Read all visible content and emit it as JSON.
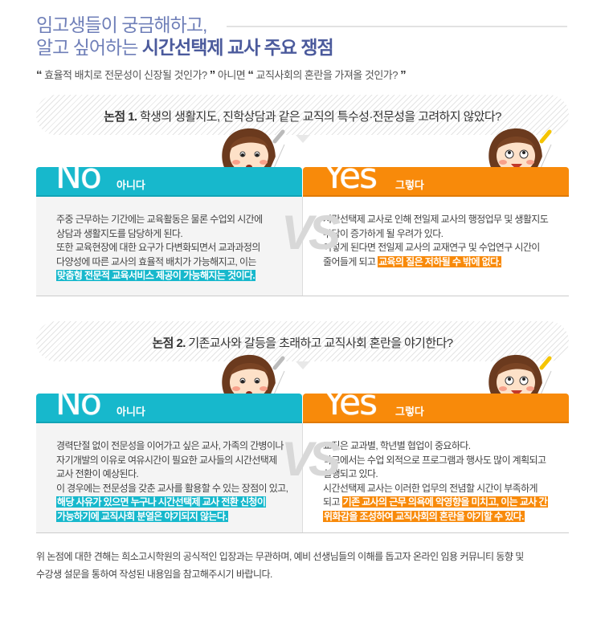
{
  "title": {
    "line1": "임고생들이 궁금해하고,",
    "line2_light": "알고 싶어하는 ",
    "line2_bold": "시간선택제 교사 주요 쟁점"
  },
  "subtitle": {
    "open_quote": "“",
    "q1": " 효율적 배치로 전문성이 신장될 것인가? ",
    "close_quote": "”",
    "mid": "  아니면 ",
    "q2": " 교직사회의 혼란을 가져올 것인가? "
  },
  "issues": [
    {
      "num": "논점 1.",
      "title": " 학생의 생활지도, 진학상담과 같은 교직의 특수성·전문성을 고려하지 않았다?",
      "no": {
        "big": "No",
        "label": "아니다",
        "text": [
          "주중 근무하는 기간에는 교육활동은 물론 수업외 시간에",
          "상담과 생활지도를 담당하게 된다.",
          "또한 교육현장에 대한 요구가 다변화되면서 교과과정의",
          "다양성에 따른 교사의 효율적 배치가 가능해지고, 이는"
        ],
        "highlight": [
          "맞춤형 전문적 교육서비스 제공이 가능해지는 것이다."
        ]
      },
      "yes": {
        "big": "Yes",
        "label": "그렇다",
        "text": [
          "시간선택제 교사로 인해 전일제 교사의 행정업무 및 생활지도",
          "부담이 증가하게 될 우려가 있다.",
          "이렇게 된다면 전일제 교사의 교재연구 및 수업연구 시간이"
        ],
        "lead": "줄어들게 되고 ",
        "highlight": [
          "교육의 질은 저하될 수 밖에 없다."
        ]
      }
    },
    {
      "num": "논점 2.",
      "title": " 기존교사와 갈등을 초래하고 교직사회 혼란을 야기한다?",
      "no": {
        "big": "No",
        "label": "아니다",
        "text": [
          "경력단절 없이 전문성을 이어가고 싶은 교사, 가족의 간병이나",
          "자기개발의 이유로 여유시간이 필요한 교사들의 시간선택제",
          "교사 전환이 예상된다.",
          "이 경우에는 전문성을 갖춘 교사를 활용할 수 있는 장점이 있고,"
        ],
        "highlight": [
          "해당 사유가 있으면 누구나 시간선택제 교사 전환 신청이",
          "가능하기에 교직사회 분열은 야기되지 않는다."
        ]
      },
      "yes": {
        "big": "Yes",
        "label": "그렇다",
        "text": [
          "교직은 교과별, 학년별 협업이 중요하다.",
          "학교에서는 수업 외적으로 프로그램과 행사도 많이 계획되고",
          "실행되고 있다.",
          "시간선택제 교사는 이러한 업무의 전념할 시간이 부족하게"
        ],
        "lead": "되고 ",
        "highlight": [
          "기존 교사의 근무 의욕에 악영향을 미치고, 이는 교사 간",
          "위화감을 조성하여 교직사회의 혼란을 야기할 수 있다."
        ]
      }
    }
  ],
  "vs": "VS",
  "footer": [
    "위 논점에 대한 견해는 희소고시학원의 공식적인 입장과는 무관하며, 예비 선생님들의 이해를 돕고자 온라인 임용 커뮤니티 동향 및",
    "수강생 설문을 통하여 작성된 내용임을 참고해주시기 바랍니다."
  ],
  "colors": {
    "no": "#17b8cc",
    "yes": "#f88a0a",
    "title": "#6f7fb8",
    "title_bold": "#4b5a9c"
  }
}
